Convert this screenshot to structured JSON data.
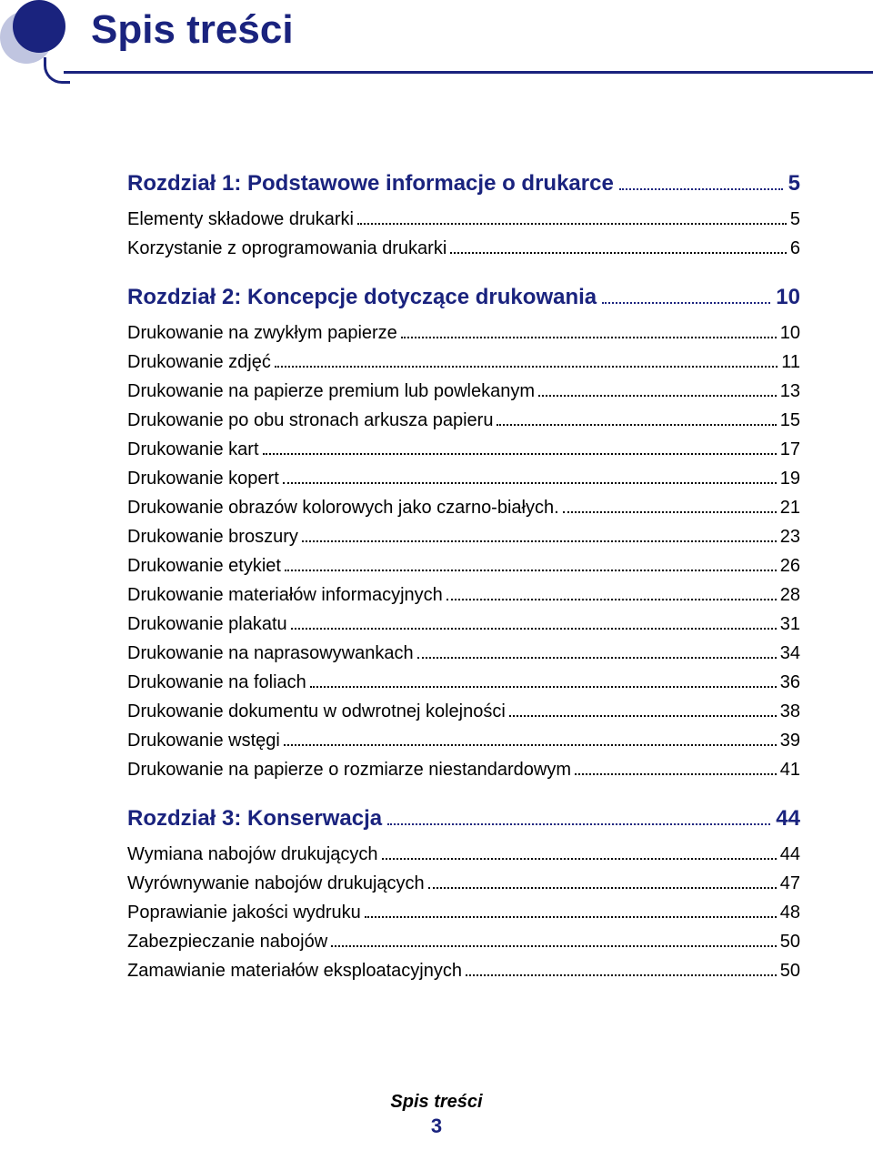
{
  "colors": {
    "accent": "#1a237e",
    "accent_light": "#c0c5e0",
    "text": "#000000",
    "background": "#ffffff"
  },
  "typography": {
    "title_fontsize": 44,
    "chapter_fontsize": 24,
    "entry_fontsize": 20,
    "footer_title_fontsize": 20,
    "footer_num_fontsize": 22,
    "font_family": "Arial"
  },
  "header": {
    "title": "Spis treści"
  },
  "toc": {
    "chapters": [
      {
        "label": "Rozdział 1:  Podstawowe informacje o drukarce",
        "page": "5",
        "entries": [
          {
            "label": "Elementy składowe drukarki",
            "page": "5"
          },
          {
            "label": "Korzystanie z oprogramowania drukarki",
            "page": "6"
          }
        ]
      },
      {
        "label": "Rozdział 2:  Koncepcje dotyczące drukowania",
        "page": "10",
        "entries": [
          {
            "label": "Drukowanie na zwykłym papierze",
            "page": "10"
          },
          {
            "label": "Drukowanie zdjęć",
            "page": "11"
          },
          {
            "label": "Drukowanie na papierze premium lub powlekanym",
            "page": "13"
          },
          {
            "label": "Drukowanie po obu stronach arkusza papieru",
            "page": "15"
          },
          {
            "label": "Drukowanie kart",
            "page": "17"
          },
          {
            "label": "Drukowanie kopert",
            "page": "19"
          },
          {
            "label": "Drukowanie obrazów kolorowych jako czarno-białych.",
            "page": "21"
          },
          {
            "label": "Drukowanie broszury",
            "page": "23"
          },
          {
            "label": "Drukowanie etykiet",
            "page": "26"
          },
          {
            "label": "Drukowanie materiałów informacyjnych",
            "page": "28"
          },
          {
            "label": "Drukowanie plakatu",
            "page": "31"
          },
          {
            "label": "Drukowanie na naprasowywankach",
            "page": "34"
          },
          {
            "label": "Drukowanie na foliach",
            "page": "36"
          },
          {
            "label": "Drukowanie dokumentu w odwrotnej kolejności",
            "page": "38"
          },
          {
            "label": "Drukowanie wstęgi",
            "page": "39"
          },
          {
            "label": "Drukowanie na papierze o rozmiarze niestandardowym",
            "page": "41"
          }
        ]
      },
      {
        "label": "Rozdział 3:  Konserwacja",
        "page": "44",
        "entries": [
          {
            "label": "Wymiana nabojów drukujących",
            "page": "44"
          },
          {
            "label": "Wyrównywanie nabojów drukujących",
            "page": "47"
          },
          {
            "label": "Poprawianie jakości wydruku",
            "page": "48"
          },
          {
            "label": "Zabezpieczanie nabojów",
            "page": "50"
          },
          {
            "label": "Zamawianie materiałów eksploatacyjnych",
            "page": "50"
          }
        ]
      }
    ]
  },
  "footer": {
    "title": "Spis treści",
    "page_number": "3"
  }
}
